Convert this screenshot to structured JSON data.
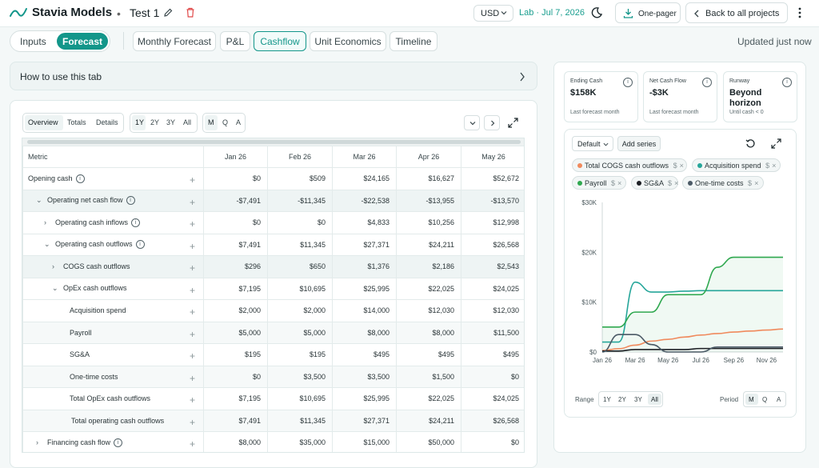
{
  "header": {
    "brand": "Stavia Models",
    "separator": "•",
    "project": "Test 1",
    "currency": "USD",
    "lab": "Lab · Jul 7, 2026",
    "onepager_label": "One-pager",
    "back_label": "Back to all projects"
  },
  "modes": {
    "inputs": "Inputs",
    "forecast": "Forecast"
  },
  "tabs": [
    "Monthly Forecast",
    "P&L",
    "Cashflow",
    "Unit Economics",
    "Timeline"
  ],
  "active_tab": "Cashflow",
  "updated": "Updated just now",
  "howto": "How to use this tab",
  "view_toggle": [
    "Overview",
    "Totals",
    "Details"
  ],
  "range_toggle": [
    "1Y",
    "2Y",
    "3Y",
    "All"
  ],
  "period_toggle": [
    "M",
    "Q",
    "A"
  ],
  "table": {
    "metric_header": "Metric",
    "columns": [
      "Jan 26",
      "Feb 26",
      "Mar 26",
      "Apr 26",
      "May 26"
    ],
    "rows": [
      {
        "label": "Opening cash",
        "values": [
          "$0",
          "$509",
          "$24,165",
          "$16,627",
          "$52,672"
        ]
      },
      {
        "label": "Operating net cash flow",
        "values": [
          "-$7,491",
          "-$11,345",
          "-$22,538",
          "-$13,955",
          "-$13,570"
        ]
      },
      {
        "label": "Operating cash inflows",
        "values": [
          "$0",
          "$0",
          "$4,833",
          "$10,256",
          "$12,998"
        ]
      },
      {
        "label": "Operating cash outflows",
        "values": [
          "$7,491",
          "$11,345",
          "$27,371",
          "$24,211",
          "$26,568"
        ]
      },
      {
        "label": "COGS cash outflows",
        "values": [
          "$296",
          "$650",
          "$1,376",
          "$2,186",
          "$2,543"
        ]
      },
      {
        "label": "OpEx cash outflows",
        "values": [
          "$7,195",
          "$10,695",
          "$25,995",
          "$22,025",
          "$24,025"
        ]
      },
      {
        "label": "Acquisition spend",
        "values": [
          "$2,000",
          "$2,000",
          "$14,000",
          "$12,030",
          "$12,030"
        ]
      },
      {
        "label": "Payroll",
        "values": [
          "$5,000",
          "$5,000",
          "$8,000",
          "$8,000",
          "$11,500"
        ]
      },
      {
        "label": "SG&A",
        "values": [
          "$195",
          "$195",
          "$495",
          "$495",
          "$495"
        ]
      },
      {
        "label": "One-time costs",
        "values": [
          "$0",
          "$3,500",
          "$3,500",
          "$1,500",
          "$0"
        ]
      },
      {
        "label": "Total OpEx cash outflows",
        "values": [
          "$7,195",
          "$10,695",
          "$25,995",
          "$22,025",
          "$24,025"
        ]
      },
      {
        "label": "Total operating cash outflows",
        "values": [
          "$7,491",
          "$11,345",
          "$27,371",
          "$24,211",
          "$26,568"
        ]
      },
      {
        "label": "Financing cash flow",
        "values": [
          "$8,000",
          "$35,000",
          "$15,000",
          "$50,000",
          "$0"
        ]
      }
    ]
  },
  "kpis": [
    {
      "label": "Ending Cash",
      "value": "$158K",
      "sub": "Last forecast month"
    },
    {
      "label": "Net Cash Flow",
      "value": "-$3K",
      "sub": "Last forecast month"
    },
    {
      "label": "Runway",
      "value": "Beyond horizon",
      "sub": "Until cash < 0"
    }
  ],
  "chart_controls": {
    "dropdown": "Default",
    "add_series": "Add series",
    "range_label": "Range",
    "period_label": "Period",
    "unit": "$",
    "remove": "×"
  },
  "colors": {
    "accent": "#13968a",
    "cogs": "#f08a5d",
    "acquisition": "#26a69a",
    "payroll": "#2fa84f",
    "sga": "#1c1f24",
    "onetime": "#4b5a66"
  },
  "chart_data": {
    "type": "line",
    "x": [
      "Jan 26",
      "Feb 26",
      "Mar 26",
      "Apr 26",
      "May 26",
      "Jun 26",
      "Jul 26",
      "Aug 26",
      "Sep 26",
      "Oct 26",
      "Nov 26",
      "Dec 26"
    ],
    "xticks": [
      "Jan 26",
      "Mar 26",
      "May 26",
      "Jul 26",
      "Sep 26",
      "Nov 26"
    ],
    "yticks": [
      "$0",
      "$10K",
      "$20K",
      "$30K"
    ],
    "ylim": [
      0,
      30000
    ],
    "series": [
      {
        "name": "Total COGS cash outflows",
        "color": "#f08a5d",
        "values": [
          296,
          650,
          1376,
          2186,
          2543,
          3000,
          3400,
          3700,
          4000,
          4200,
          4400,
          4600
        ]
      },
      {
        "name": "Acquisition spend",
        "color": "#26a69a",
        "values": [
          2000,
          2000,
          14000,
          12030,
          12030,
          12200,
          12300,
          12300,
          12300,
          12300,
          12300,
          12300
        ]
      },
      {
        "name": "Payroll",
        "color": "#2fa84f",
        "values": [
          5000,
          5000,
          8000,
          8000,
          11500,
          11500,
          11500,
          17000,
          19000,
          19000,
          19000,
          19000
        ]
      },
      {
        "name": "SG&A",
        "color": "#1c1f24",
        "values": [
          195,
          195,
          495,
          495,
          495,
          495,
          700,
          700,
          700,
          700,
          700,
          700
        ]
      },
      {
        "name": "One-time costs",
        "color": "#4b5a66",
        "values": [
          0,
          3500,
          3500,
          1500,
          0,
          0,
          0,
          1000,
          1000,
          1000,
          1000,
          1000
        ]
      }
    ]
  }
}
